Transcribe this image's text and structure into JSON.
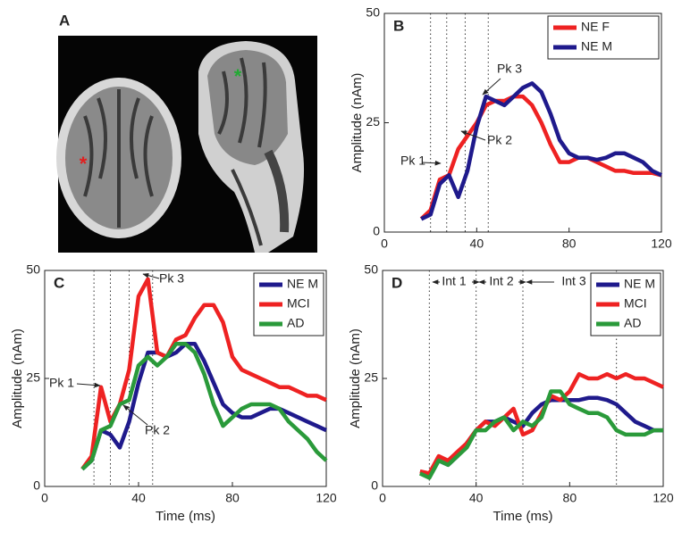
{
  "panel_a_label": "A",
  "chart_data": [
    {
      "type": "line",
      "panel": "B",
      "y_label": "Amplitude (nAm)",
      "x": [
        16,
        20,
        24,
        28,
        32,
        36,
        40,
        44,
        48,
        52,
        56,
        60,
        64,
        68,
        72,
        76,
        80,
        84,
        88,
        92,
        96,
        100,
        104,
        108,
        112,
        116,
        120
      ],
      "xlim": [
        0,
        120
      ],
      "xticks": [
        0,
        40,
        80,
        120
      ],
      "ylim": [
        0,
        50
      ],
      "yticks": [
        0,
        25,
        50
      ],
      "vlines": [
        20,
        27,
        35,
        45
      ],
      "legend": "upper right",
      "annotations": [
        "Pk 1",
        "Pk 2",
        "Pk 3"
      ],
      "series": [
        {
          "name": "NE F",
          "color": "#ee2222",
          "values": [
            3,
            5,
            12,
            13,
            19,
            22,
            25,
            29,
            30,
            30,
            31,
            31,
            29,
            25,
            20,
            16,
            16,
            17,
            17,
            16,
            15,
            14,
            14,
            13.5,
            13.5,
            13.5,
            13
          ]
        },
        {
          "name": "NE M",
          "color": "#1f1a8c",
          "values": [
            3,
            4,
            11,
            13,
            8,
            14,
            24,
            31,
            30,
            29,
            31,
            33,
            34,
            32,
            27,
            21,
            18,
            17,
            17,
            16.5,
            17,
            18,
            18,
            17,
            16,
            14,
            13
          ]
        }
      ]
    },
    {
      "type": "line",
      "panel": "C",
      "x_label": "Time (ms)",
      "y_label": "Amplitude (nAm)",
      "x": [
        16,
        20,
        24,
        28,
        32,
        36,
        40,
        44,
        48,
        52,
        56,
        60,
        64,
        68,
        72,
        76,
        80,
        84,
        88,
        92,
        96,
        100,
        104,
        108,
        112,
        116,
        120
      ],
      "xlim": [
        0,
        120
      ],
      "xticks": [
        0,
        40,
        80,
        120
      ],
      "ylim": [
        0,
        50
      ],
      "yticks": [
        0,
        25,
        50
      ],
      "vlines": [
        21,
        28,
        36,
        46
      ],
      "legend": "upper right",
      "annotations": [
        "Pk 1",
        "Pk 2",
        "Pk 3"
      ],
      "series": [
        {
          "name": "NE M",
          "color": "#1f1a8c",
          "values": [
            4,
            6,
            13,
            12,
            9,
            15,
            24,
            31,
            31,
            30,
            31,
            33,
            33,
            29,
            24,
            19,
            17,
            16,
            16,
            17,
            18,
            18,
            17,
            16,
            15,
            14,
            13
          ]
        },
        {
          "name": "MCI",
          "color": "#ee2222",
          "values": [
            4,
            7,
            23,
            15,
            19,
            27,
            44,
            48,
            31,
            30,
            34,
            35,
            39,
            42,
            42,
            38,
            30,
            27,
            26,
            25,
            24,
            23,
            23,
            22,
            21,
            21,
            20
          ]
        },
        {
          "name": "AD",
          "color": "#2a9a3a",
          "values": [
            4,
            6,
            13,
            14,
            19,
            20,
            28,
            30,
            28,
            30,
            33,
            33,
            31,
            26,
            19,
            14,
            16,
            18,
            19,
            19,
            19,
            18,
            15,
            13,
            11,
            8,
            6
          ]
        }
      ]
    },
    {
      "type": "line",
      "panel": "D",
      "x_label": "Time (ms)",
      "y_label": "Amplitude (nAm)",
      "x": [
        16,
        20,
        24,
        28,
        32,
        36,
        40,
        44,
        48,
        52,
        56,
        60,
        64,
        68,
        72,
        76,
        80,
        84,
        88,
        92,
        96,
        100,
        104,
        108,
        112,
        116,
        120
      ],
      "xlim": [
        0,
        120
      ],
      "xticks": [
        0,
        40,
        80,
        120
      ],
      "ylim": [
        0,
        50
      ],
      "yticks": [
        0,
        25,
        50
      ],
      "vlines": [
        20,
        40,
        60,
        100
      ],
      "legend": "upper right",
      "annotations": [
        "Int 1",
        "Int 2",
        "Int 3"
      ],
      "series": [
        {
          "name": "NE M",
          "color": "#1f1a8c",
          "values": [
            3,
            3,
            6,
            5,
            7,
            10,
            13,
            15,
            15,
            16,
            15,
            14,
            17,
            19,
            20,
            20,
            20,
            20,
            20.5,
            20.5,
            20,
            19,
            17,
            15,
            14,
            13,
            13
          ]
        },
        {
          "name": "MCI",
          "color": "#ee2222",
          "values": [
            3.5,
            3,
            7,
            6,
            8,
            10,
            13,
            15,
            14,
            16,
            18,
            12,
            13,
            17,
            21,
            20,
            22,
            26,
            25,
            25,
            26,
            25,
            26,
            25,
            25,
            24,
            23
          ]
        },
        {
          "name": "AD",
          "color": "#2a9a3a",
          "values": [
            3,
            2,
            6,
            5,
            7,
            9,
            13,
            13,
            15,
            16,
            13,
            15,
            14,
            16,
            22,
            22,
            19,
            18,
            17,
            17,
            16,
            13,
            12,
            12,
            12,
            13,
            13
          ]
        }
      ]
    }
  ]
}
